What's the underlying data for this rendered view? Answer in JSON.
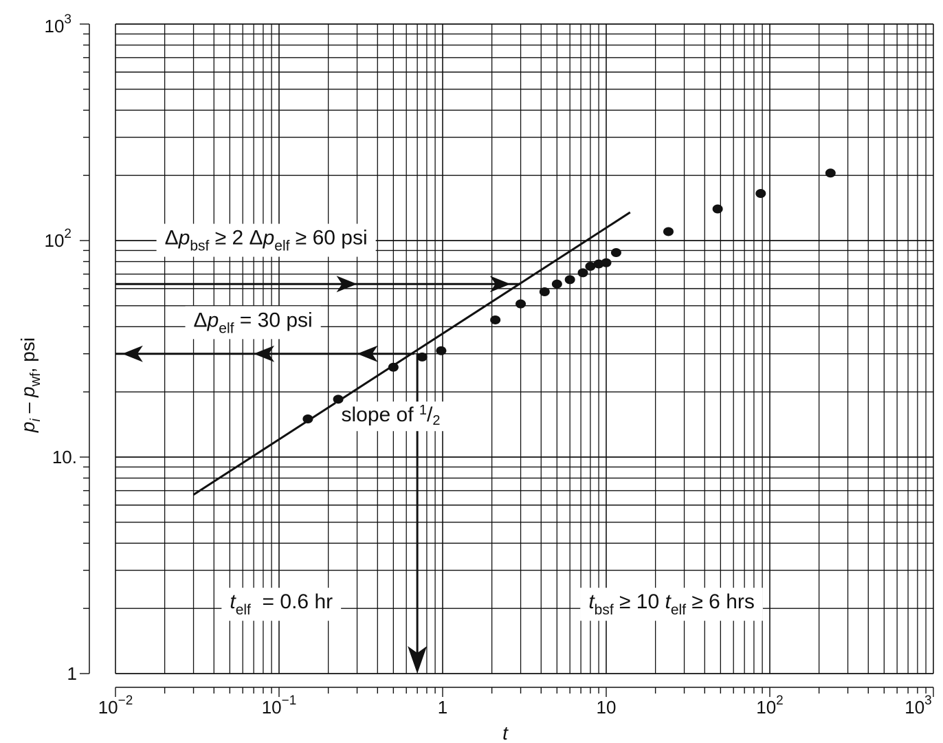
{
  "chart_data": {
    "type": "scatter",
    "scale": {
      "x": "log",
      "y": "log"
    },
    "xlim": [
      0.01,
      1000
    ],
    "ylim": [
      1,
      1000
    ],
    "grid": true,
    "xlabel": {
      "base": "t"
    },
    "ylabel": {
      "main1": "p",
      "sub1": "i",
      "dash": " – ",
      "main2": "p",
      "sub2": "wf",
      "unit": ", psi"
    },
    "x_ticks": [
      {
        "value": 0.01,
        "base": "10",
        "exp": "−2"
      },
      {
        "value": 0.1,
        "base": "10",
        "exp": "−1"
      },
      {
        "value": 1,
        "base": "1",
        "exp": ""
      },
      {
        "value": 10,
        "base": "10",
        "exp": ""
      },
      {
        "value": 100,
        "base": "10",
        "exp": "2"
      },
      {
        "value": 1000,
        "base": "10",
        "exp": "3"
      }
    ],
    "y_ticks": [
      {
        "value": 1,
        "base": "1",
        "exp": ""
      },
      {
        "value": 10,
        "base": "10.",
        "exp": ""
      },
      {
        "value": 100,
        "base": "10",
        "exp": "2"
      },
      {
        "value": 1000,
        "base": "10",
        "exp": "3"
      }
    ],
    "points": [
      {
        "x": 0.15,
        "y": 15
      },
      {
        "x": 0.23,
        "y": 18.5
      },
      {
        "x": 0.5,
        "y": 26
      },
      {
        "x": 0.75,
        "y": 29
      },
      {
        "x": 0.98,
        "y": 31
      },
      {
        "x": 2.1,
        "y": 43
      },
      {
        "x": 3,
        "y": 51
      },
      {
        "x": 4.2,
        "y": 58
      },
      {
        "x": 5,
        "y": 63
      },
      {
        "x": 6,
        "y": 66
      },
      {
        "x": 7.2,
        "y": 71
      },
      {
        "x": 8,
        "y": 76
      },
      {
        "x": 9,
        "y": 78
      },
      {
        "x": 10,
        "y": 79
      },
      {
        "x": 11.5,
        "y": 88
      },
      {
        "x": 24,
        "y": 110
      },
      {
        "x": 48,
        "y": 140
      },
      {
        "x": 88,
        "y": 165
      },
      {
        "x": 235,
        "y": 205
      }
    ],
    "trend_line": {
      "from": {
        "x": 0.03,
        "y": 6.7
      },
      "to": {
        "x": 14,
        "y": 135
      }
    },
    "slope_label": {
      "prefix": "slope of ",
      "num": "1",
      "den": "2",
      "x": 0.24,
      "y": 14.6
    },
    "annotations": [
      {
        "id": "dp-bsf",
        "x": 0.02,
        "y": 96,
        "parts": [
          {
            "t": "Δ",
            "italic": false,
            "sub": false
          },
          {
            "t": "p",
            "italic": true,
            "sub": false
          },
          {
            "t": "bsf",
            "italic": false,
            "sub": true
          },
          {
            "t": " ≥ 2 Δ",
            "italic": false,
            "sub": false
          },
          {
            "t": "p",
            "italic": true,
            "sub": false
          },
          {
            "t": "elf",
            "italic": false,
            "sub": true
          },
          {
            "t": " ≥ 60 psi",
            "italic": false,
            "sub": false
          }
        ]
      },
      {
        "id": "dp-elf",
        "x": 0.03,
        "y": 40,
        "parts": [
          {
            "t": "Δ",
            "italic": false,
            "sub": false
          },
          {
            "t": "p",
            "italic": true,
            "sub": false
          },
          {
            "t": "elf",
            "italic": false,
            "sub": true
          },
          {
            "t": " = 30 psi",
            "italic": false,
            "sub": false
          }
        ]
      },
      {
        "id": "t-elf",
        "x": 0.05,
        "y": 2.0,
        "parts": [
          {
            "t": "t",
            "italic": true,
            "sub": false
          },
          {
            "t": "elf",
            "italic": false,
            "sub": true
          },
          {
            "t": "  = 0.6 hr",
            "italic": false,
            "sub": false
          }
        ]
      },
      {
        "id": "t-bsf",
        "x": 7.8,
        "y": 2.0,
        "parts": [
          {
            "t": "t",
            "italic": true,
            "sub": false
          },
          {
            "t": "bsf",
            "italic": false,
            "sub": true
          },
          {
            "t": " ≥ 10 ",
            "italic": false,
            "sub": false
          },
          {
            "t": "t",
            "italic": true,
            "sub": false
          },
          {
            "t": "elf",
            "italic": false,
            "sub": true
          },
          {
            "t": " ≥ 6 hrs",
            "italic": false,
            "sub": false
          }
        ]
      }
    ],
    "arrow_lines": [
      {
        "y": 63,
        "from_x": 0.01,
        "to_x": 3.0,
        "heads": [
          0.3,
          2.6
        ],
        "direction": "right"
      },
      {
        "y": 30,
        "from_x": 0.67,
        "to_x": 0.01,
        "heads": [
          0.3,
          0.07,
          0.011
        ],
        "direction": "left"
      }
    ],
    "vertical_arrow": {
      "x": 0.7,
      "from_y": 30,
      "to_y": 1
    },
    "colors": {
      "ink": "#111111",
      "background": "#ffffff"
    }
  }
}
